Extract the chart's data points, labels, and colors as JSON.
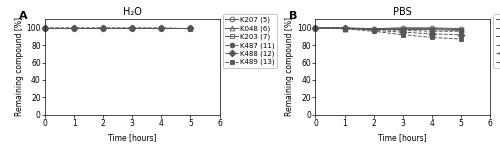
{
  "title_A": "H₂O",
  "title_B": "PBS",
  "xlabel": "Time [hours]",
  "ylabel": "Remaining compound [%]",
  "label_A": "A",
  "label_B": "B",
  "xlim": [
    0,
    6
  ],
  "ylim": [
    0,
    110
  ],
  "yticks": [
    0,
    20,
    40,
    60,
    80,
    100
  ],
  "xticks": [
    0,
    1,
    2,
    3,
    4,
    5,
    6
  ],
  "time_points": [
    0,
    1,
    2,
    3,
    4,
    5
  ],
  "compounds": [
    "K207 (5)",
    "K048 (6)",
    "K203 (7)",
    "K487 (11)",
    "K488 (12)",
    "K489 (13)"
  ],
  "markers": [
    "o",
    "^",
    "s",
    "o",
    "D",
    "s"
  ],
  "fillstyles": [
    "none",
    "none",
    "none",
    "full",
    "full",
    "full"
  ],
  "linestyles": [
    "-",
    "-",
    "-",
    "--",
    "--",
    "--"
  ],
  "color": "#555555",
  "markersize": [
    3.5,
    3.5,
    3.5,
    3.5,
    3.5,
    3.5
  ],
  "data_A": {
    "K207 (5)": [
      100,
      100,
      100,
      100,
      100,
      100
    ],
    "K048 (6)": [
      100,
      100,
      100,
      100,
      100,
      100
    ],
    "K203 (7)": [
      100,
      100,
      100,
      100,
      100,
      100
    ],
    "K487 (11)": [
      100,
      100,
      100,
      100,
      100,
      100
    ],
    "K488 (12)": [
      100,
      100,
      100,
      100,
      100,
      100
    ],
    "K489 (13)": [
      100,
      100,
      100,
      100,
      100,
      99
    ]
  },
  "data_B": {
    "K207 (5)": [
      100,
      100,
      99,
      100,
      100,
      99
    ],
    "K048 (6)": [
      100,
      99,
      99,
      99,
      99,
      98
    ],
    "K203 (7)": [
      100,
      99,
      98,
      98,
      98,
      97
    ],
    "K487 (11)": [
      100,
      100,
      98,
      97,
      96,
      96
    ],
    "K488 (12)": [
      100,
      100,
      97,
      95,
      93,
      92
    ],
    "K489 (13)": [
      100,
      99,
      96,
      92,
      89,
      87
    ]
  },
  "linewidth": 0.7,
  "fontsize_title": 7,
  "fontsize_label": 5.5,
  "fontsize_tick": 5.5,
  "fontsize_legend": 5.0,
  "fontsize_panel_label": 8
}
